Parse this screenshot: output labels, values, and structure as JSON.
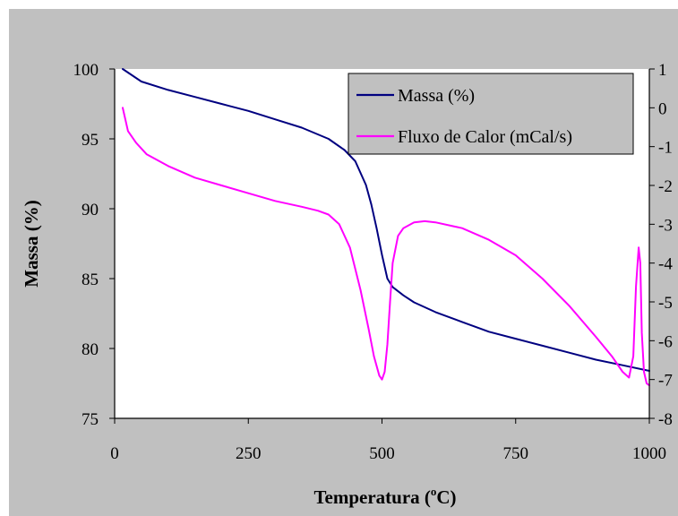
{
  "chart_data": {
    "type": "line",
    "xlabel": "Temperatura (",
    "xlabel_sup": "o",
    "xlabel_suffix": "C)",
    "ylabel": "Massa (%)",
    "xlim": [
      0,
      1000
    ],
    "ylim": [
      75,
      100
    ],
    "y2lim": [
      -8,
      1
    ],
    "x_ticks": [
      "0",
      "250",
      "500",
      "750",
      "1000"
    ],
    "y_ticks": [
      "75",
      "80",
      "85",
      "90",
      "95",
      "100"
    ],
    "y2_ticks": [
      "1",
      "0",
      "-1",
      "-2",
      "-3",
      "-4",
      "-5",
      "-6",
      "-7",
      "-8"
    ],
    "legend": {
      "position": "top-right",
      "entries": [
        "Massa (%)",
        "Fluxo de Calor (mCal/s)"
      ]
    },
    "colors": {
      "background": "#c0c0c0",
      "plot_area": "#ffffff",
      "massa": "#000080",
      "fluxo": "#ff00ff"
    },
    "series": [
      {
        "name": "Massa (%)",
        "axis": "left",
        "x": [
          15,
          50,
          100,
          150,
          200,
          250,
          300,
          350,
          400,
          430,
          450,
          470,
          480,
          490,
          500,
          510,
          520,
          540,
          560,
          600,
          650,
          700,
          750,
          800,
          850,
          900,
          950,
          1000
        ],
        "y": [
          100,
          99.1,
          98.5,
          98.0,
          97.5,
          97.0,
          96.4,
          95.8,
          95.0,
          94.2,
          93.4,
          91.7,
          90.3,
          88.6,
          86.7,
          85.0,
          84.4,
          83.8,
          83.3,
          82.6,
          81.9,
          81.2,
          80.7,
          80.2,
          79.7,
          79.2,
          78.8,
          78.4
        ]
      },
      {
        "name": "Fluxo de Calor (mCal/s)",
        "axis": "right",
        "x": [
          15,
          25,
          40,
          60,
          100,
          150,
          200,
          250,
          300,
          350,
          380,
          400,
          420,
          440,
          460,
          475,
          485,
          495,
          500,
          505,
          510,
          515,
          520,
          530,
          540,
          560,
          580,
          600,
          650,
          700,
          750,
          800,
          850,
          900,
          930,
          950,
          962,
          970,
          975,
          980,
          983,
          986,
          990,
          995,
          1000
        ],
        "y": [
          0,
          -0.6,
          -0.9,
          -1.2,
          -1.5,
          -1.8,
          -2.0,
          -2.2,
          -2.4,
          -2.55,
          -2.65,
          -2.75,
          -3.0,
          -3.6,
          -4.7,
          -5.7,
          -6.4,
          -6.9,
          -7.0,
          -6.8,
          -6.1,
          -5.0,
          -4.0,
          -3.3,
          -3.1,
          -2.95,
          -2.92,
          -2.95,
          -3.1,
          -3.4,
          -3.8,
          -4.4,
          -5.1,
          -5.9,
          -6.4,
          -6.8,
          -6.95,
          -6.4,
          -4.6,
          -3.6,
          -4.0,
          -5.8,
          -6.8,
          -7.1,
          -7.15
        ]
      }
    ]
  }
}
